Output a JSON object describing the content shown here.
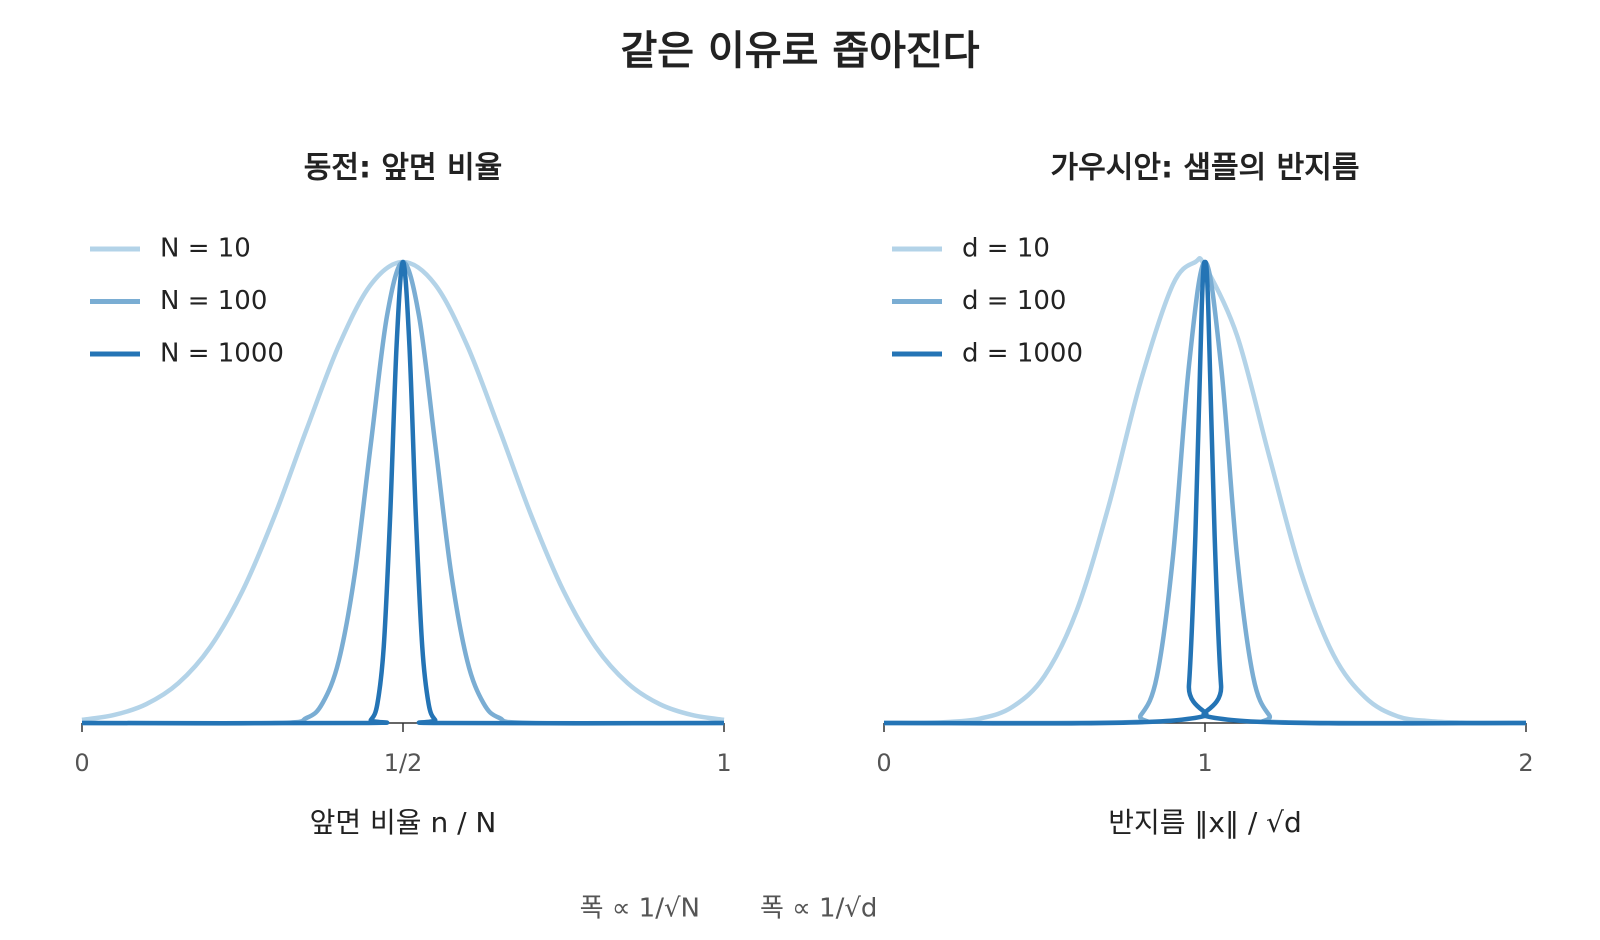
{
  "title": "같은 이유로 좁아진다",
  "footnotes": [
    "폭 ∝ 1/√N",
    "폭 ∝ 1/√d"
  ],
  "chart_data": [
    {
      "type": "line",
      "title": "동전: 앞면 비율",
      "x_label": "앞면 비율 n / N",
      "xlim": [
        0,
        1
      ],
      "xticks": [
        0,
        {
          "value": 0.5,
          "label": "1/2"
        },
        1
      ],
      "ylim": [
        0,
        1
      ],
      "legend": "upper left",
      "series": [
        {
          "name": "N = 10",
          "color": "#b3d3e8",
          "x": [
            0,
            0.05,
            0.1,
            0.15,
            0.2,
            0.25,
            0.3,
            0.35,
            0.4,
            0.45,
            0.5,
            0.55,
            0.6,
            0.65,
            0.7,
            0.75,
            0.8,
            0.85,
            0.9,
            0.95,
            1
          ],
          "values": [
            0.0067,
            0.0174,
            0.0408,
            0.0863,
            0.1653,
            0.2865,
            0.4493,
            0.6376,
            0.8187,
            0.9512,
            1,
            0.9512,
            0.8187,
            0.6376,
            0.4493,
            0.2865,
            0.1653,
            0.0863,
            0.0408,
            0.0174,
            0.0067
          ]
        },
        {
          "name": "N = 100",
          "color": "#7aadd3",
          "x": [
            0,
            0.3,
            0.35,
            0.375,
            0.4,
            0.425,
            0.45,
            0.475,
            0.5,
            0.525,
            0.55,
            0.575,
            0.6,
            0.625,
            0.65,
            0.7,
            1
          ],
          "values": [
            0,
            0,
            0.0111,
            0.0439,
            0.1353,
            0.3247,
            0.6065,
            0.8825,
            1,
            0.8825,
            0.6065,
            0.3247,
            0.1353,
            0.0439,
            0.0111,
            0,
            0
          ]
        },
        {
          "name": "N = 1000",
          "color": "#2474b5",
          "x": [
            0,
            0.44,
            0.45,
            0.46,
            0.47,
            0.48,
            0.49,
            0.5,
            0.51,
            0.52,
            0.53,
            0.54,
            0.55,
            0.56,
            1
          ],
          "values": [
            0,
            0,
            0.0067,
            0.0408,
            0.1653,
            0.4493,
            0.8187,
            1,
            0.8187,
            0.4493,
            0.1653,
            0.0408,
            0.0067,
            0,
            0
          ]
        }
      ]
    },
    {
      "type": "line",
      "title": "가우시안: 샘플의 반지름",
      "x_label": "반지름 ‖x‖ / √d",
      "xlim": [
        0,
        2
      ],
      "xticks": [
        0,
        1,
        2
      ],
      "ylim": [
        0,
        1
      ],
      "legend": "upper left",
      "series": [
        {
          "name": "d = 10",
          "color": "#b3d3e8",
          "x": [
            0,
            0.1,
            0.2,
            0.3,
            0.4,
            0.5,
            0.6,
            0.7,
            0.8,
            0.9,
            0.97,
            1.0,
            1.1,
            1.2,
            1.3,
            1.4,
            1.5,
            1.6,
            1.7,
            1.8,
            1.9,
            2.0
          ],
          "values": [
            0,
            0.0004,
            0.0022,
            0.0097,
            0.0349,
            0.102,
            0.243,
            0.471,
            0.742,
            0.951,
            1,
            0.991,
            0.84,
            0.579,
            0.325,
            0.148,
            0.055,
            0.0145,
            0.0041,
            0.0008,
            0.0001,
            0
          ]
        },
        {
          "name": "d = 100",
          "color": "#7aadd3",
          "x": [
            0,
            0.75,
            0.8,
            0.85,
            0.9,
            0.95,
            1,
            1.05,
            1.1,
            1.15,
            1.2,
            1.25,
            2
          ],
          "values": [
            0,
            0.0017,
            0.0169,
            0.1007,
            0.36,
            0.775,
            1,
            0.775,
            0.36,
            0.1007,
            0.0169,
            0.0017,
            0
          ]
        },
        {
          "name": "d = 1000",
          "color": "#2474b5",
          "x": [
            0,
            0.93,
            0.95,
            0.97,
            0.99,
            1,
            1.01,
            1.03,
            1.05,
            1.07,
            2
          ],
          "values": [
            0,
            0.0074,
            0.082,
            0.4066,
            0.905,
            1,
            0.905,
            0.4066,
            0.082,
            0.0074,
            0
          ]
        }
      ]
    }
  ]
}
